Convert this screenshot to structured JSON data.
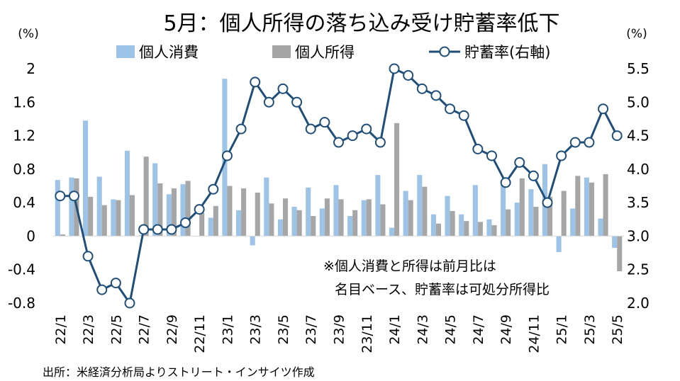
{
  "chart_data": {
    "type": "bar+line",
    "title": "5月：個人所得の落ち込み受け貯蓄率低下",
    "y_left_unit": "(%)",
    "y_right_unit": "(%)",
    "y_left_range": [
      -0.8,
      2.0
    ],
    "y_left_ticks": [
      "2",
      "1.6",
      "1.2",
      "0.8",
      "0.4",
      "0",
      "-0.4",
      "-0.8"
    ],
    "y_right_range": [
      2.0,
      5.5
    ],
    "y_right_ticks": [
      "5.5",
      "5.0",
      "4.5",
      "4.0",
      "3.5",
      "3.0",
      "2.5",
      "2.0"
    ],
    "x_tick_labels": [
      "22/1",
      "22/3",
      "22/5",
      "22/7",
      "22/9",
      "22/11",
      "23/1",
      "23/3",
      "23/5",
      "23/7",
      "23/9",
      "23/11",
      "24/1",
      "24/3",
      "24/5",
      "24/7",
      "24/9",
      "24/11",
      "25/1",
      "25/3",
      "25/5"
    ],
    "categories": [
      "22/1",
      "22/2",
      "22/3",
      "22/4",
      "22/5",
      "22/6",
      "22/7",
      "22/8",
      "22/9",
      "22/10",
      "22/11",
      "22/12",
      "23/1",
      "23/2",
      "23/3",
      "23/4",
      "23/5",
      "23/6",
      "23/7",
      "23/8",
      "23/9",
      "23/10",
      "23/11",
      "23/12",
      "24/1",
      "24/2",
      "24/3",
      "24/4",
      "24/5",
      "24/6",
      "24/7",
      "24/8",
      "24/9",
      "24/10",
      "24/11",
      "24/12",
      "25/1",
      "25/2",
      "25/3",
      "25/4",
      "25/5"
    ],
    "series": [
      {
        "name": "個人消費",
        "type": "bar",
        "axis": "left",
        "color": "#9dc3e6",
        "values": [
          0.67,
          0.7,
          1.38,
          0.71,
          0.44,
          1.02,
          0.01,
          0.87,
          0.5,
          0.62,
          0.0,
          0.22,
          1.88,
          0.31,
          -0.11,
          0.7,
          0.2,
          0.35,
          0.58,
          0.33,
          0.61,
          0.24,
          0.43,
          0.73,
          0.1,
          0.54,
          0.73,
          0.26,
          0.48,
          0.26,
          0.61,
          0.2,
          0.65,
          0.4,
          0.56,
          0.86,
          -0.19,
          0.33,
          0.7,
          0.21,
          -0.14
        ]
      },
      {
        "name": "個人所得",
        "type": "bar",
        "axis": "left",
        "color": "#a6a6a6",
        "values": [
          0.02,
          0.69,
          0.47,
          0.37,
          0.43,
          0.49,
          0.95,
          0.63,
          0.57,
          0.66,
          0.28,
          0.36,
          0.6,
          0.57,
          0.52,
          0.39,
          0.45,
          0.31,
          0.24,
          0.45,
          0.44,
          0.31,
          0.44,
          0.38,
          1.35,
          0.43,
          0.59,
          0.15,
          0.3,
          0.18,
          0.17,
          0.13,
          0.32,
          0.69,
          0.35,
          0.47,
          0.54,
          0.72,
          0.64,
          0.74,
          -0.42
        ]
      },
      {
        "name": "貯蓄率(右軸)",
        "type": "line",
        "axis": "right",
        "color": "#1f4e79",
        "values": [
          3.6,
          3.6,
          2.7,
          2.2,
          2.3,
          2.0,
          3.1,
          3.1,
          3.1,
          3.2,
          3.4,
          3.7,
          4.2,
          4.6,
          5.3,
          5.0,
          5.2,
          5.0,
          4.6,
          4.7,
          4.4,
          4.5,
          4.6,
          4.4,
          5.5,
          5.4,
          5.2,
          5.1,
          4.9,
          4.8,
          4.3,
          4.2,
          3.8,
          4.1,
          3.9,
          3.5,
          4.2,
          4.4,
          4.4,
          4.9,
          4.5
        ]
      }
    ],
    "legend_position": "top",
    "grid": false
  },
  "note_lines": [
    "※個人消費と所得は前月比は",
    "名目ベース、貯蓄率は可処分所得比"
  ],
  "source": "出所：米経済分析局よりストリート・インサイツ作成"
}
